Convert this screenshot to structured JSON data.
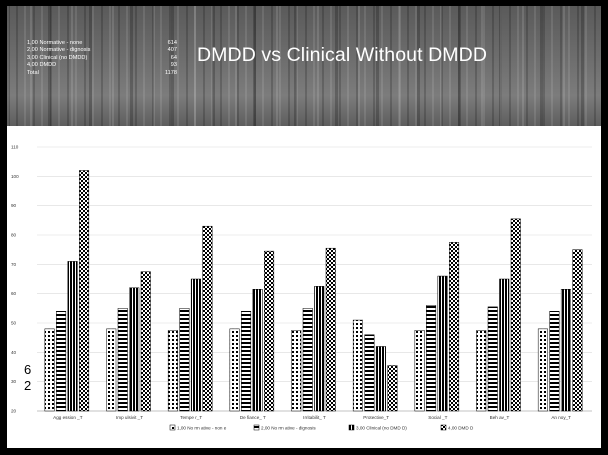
{
  "slide": {
    "title": "DMDD vs Clinical Without DMDD",
    "table": [
      {
        "label": "1,00 Normative - none",
        "value": "614"
      },
      {
        "label": "2,00 Normative - dignosis",
        "value": "407"
      },
      {
        "label": "3,00 Clinical (no DMDD)",
        "value": "64"
      },
      {
        "label": "4,00 DMDD",
        "value": "93"
      },
      {
        "label": "Total",
        "value": "1178"
      }
    ],
    "overlay_text": [
      "6",
      "2"
    ]
  },
  "chart_data": {
    "type": "bar",
    "title": "",
    "xlabel": "",
    "ylabel": "",
    "ylim": [
      20,
      110
    ],
    "yticks": [
      20,
      30,
      40,
      50,
      60,
      70,
      80,
      90,
      100,
      110
    ],
    "grid": true,
    "legend_position": "bottom",
    "categories": [
      "Agg ession _T",
      "Imp ulsivit _T",
      "Tempe r_T",
      "De fiance_ T",
      "Irritabilit_ T",
      "Protective_T",
      "Social _T",
      "Beh av_T",
      "An noy_T"
    ],
    "series": [
      {
        "name": "1,00 No rm ative - non e",
        "values": [
          48,
          48,
          47.5,
          48,
          47.5,
          51,
          47.5,
          47.5,
          48
        ],
        "pattern": "dots"
      },
      {
        "name": "2,00 No rm ative - dignosis",
        "values": [
          54,
          55,
          55,
          54,
          55,
          46,
          56,
          55.5,
          54
        ],
        "pattern": "hstripes"
      },
      {
        "name": "3,00 Clinical (no DMD D)",
        "values": [
          71,
          62,
          65,
          61.5,
          62.5,
          42,
          66,
          65,
          61.5
        ],
        "pattern": "vstripes"
      },
      {
        "name": "4,00 DMD D",
        "values": [
          102,
          67.5,
          83,
          74.5,
          75.5,
          35.5,
          77.5,
          85.5,
          75
        ],
        "pattern": "checker"
      }
    ]
  }
}
